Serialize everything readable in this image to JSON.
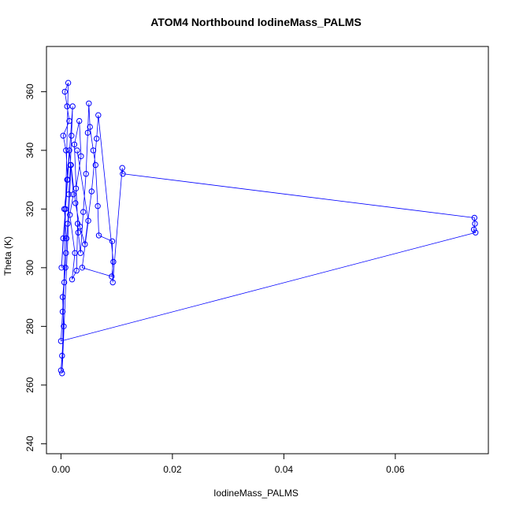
{
  "chart_data": {
    "type": "scatter",
    "title": "ATOM4 Northbound IodineMass_PALMS",
    "xlabel": "IodineMass_PALMS",
    "ylabel": "Theta (K)",
    "xlim": [
      -0.0026,
      0.0767
    ],
    "ylim": [
      236.6,
      375.4
    ],
    "x_ticks": [
      0.0,
      0.02,
      0.04,
      0.06
    ],
    "x_tick_labels": [
      "0.00",
      "0.02",
      "0.04",
      "0.06"
    ],
    "y_ticks": [
      240,
      260,
      280,
      300,
      320,
      340,
      360
    ],
    "y_tick_labels": [
      "240",
      "260",
      "280",
      "300",
      "320",
      "340",
      "360"
    ],
    "grid": false,
    "legend": "none",
    "marker": "open-circle",
    "connect_points": true,
    "color": "#0000ff",
    "series": [
      {
        "x": [
          0.0,
          0.0002,
          0.0005,
          0.0003,
          0.0008,
          0.001,
          0.0006,
          0.0012,
          0.0009,
          0.0004,
          0.0015,
          0.0011,
          0.0007,
          0.0013,
          0.0002,
          0.0018,
          0.0022,
          0.0016,
          0.0025,
          0.002,
          0.0028,
          0.003,
          0.0024,
          0.0033,
          0.0036,
          0.0027,
          0.0031,
          0.0035,
          0.004,
          0.0045,
          0.0048,
          0.005,
          0.0052,
          0.0058,
          0.0062,
          0.0066,
          0.0068,
          0.0092,
          0.0093,
          0.011,
          0.0111,
          0.0742,
          0.0743,
          0.0741,
          0.0744,
          0.0,
          0.0003,
          0.0006,
          0.0009,
          0.0012,
          0.0014,
          0.0017,
          0.0019,
          0.0021,
          0.0001,
          0.0004,
          0.0008,
          0.0011,
          0.0015,
          0.0026,
          0.0034,
          0.0043,
          0.0055,
          0.0064,
          0.0067,
          0.0094,
          0.0091,
          0.0038,
          0.0049,
          0.0029
        ],
        "y": [
          265,
          270,
          280,
          290,
          300,
          310,
          320,
          330,
          340,
          345,
          350,
          355,
          360,
          363,
          264,
          335,
          325,
          318,
          305,
          296,
          299,
          315,
          342,
          350,
          338,
          327,
          312,
          305,
          319,
          332,
          346,
          356,
          348,
          340,
          335,
          321,
          311,
          309,
          295,
          334,
          332,
          317,
          315,
          313,
          312,
          275,
          285,
          295,
          305,
          315,
          325,
          335,
          345,
          355,
          300,
          310,
          320,
          330,
          340,
          322,
          314,
          308,
          326,
          344,
          352,
          302,
          297,
          300,
          316,
          340
        ]
      }
    ]
  }
}
